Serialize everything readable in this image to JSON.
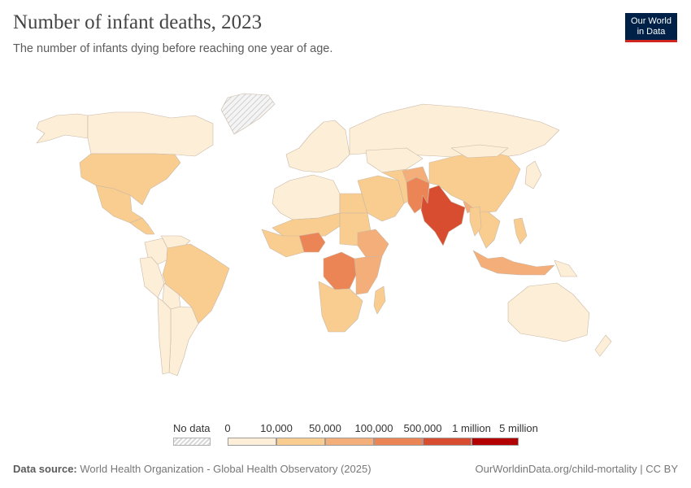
{
  "header": {
    "title": "Number of infant deaths, 2023",
    "subtitle": "The number of infants dying before reaching one year of age.",
    "logo_line1": "Our World",
    "logo_line2": "in Data"
  },
  "map": {
    "scale_colors": [
      "#fdeed8",
      "#f9cd8f",
      "#f3ae79",
      "#ec8555",
      "#d84c30",
      "#b30000"
    ],
    "nodata_color": "#ececec",
    "regions": [
      {
        "name": "Greenland",
        "value": null
      },
      {
        "name": "Alaska",
        "value": 5000
      },
      {
        "name": "Canada",
        "value": 1800
      },
      {
        "name": "United States",
        "value": 20000
      },
      {
        "name": "Mexico",
        "value": 25000
      },
      {
        "name": "Central America",
        "value": 12000
      },
      {
        "name": "Colombia",
        "value": 8000
      },
      {
        "name": "Venezuela",
        "value": 7000
      },
      {
        "name": "Peru",
        "value": 6000
      },
      {
        "name": "Brazil",
        "value": 32000
      },
      {
        "name": "Bolivia",
        "value": 7000
      },
      {
        "name": "Argentina",
        "value": 5000
      },
      {
        "name": "Chile",
        "value": 1500
      },
      {
        "name": "Western Europe",
        "value": 2000
      },
      {
        "name": "Russia",
        "value": 7000
      },
      {
        "name": "North Africa",
        "value": 9000
      },
      {
        "name": "Egypt",
        "value": 30000
      },
      {
        "name": "Sahel",
        "value": 45000
      },
      {
        "name": "Nigeria",
        "value": 250000
      },
      {
        "name": "West Africa",
        "value": 40000
      },
      {
        "name": "Sudan",
        "value": 45000
      },
      {
        "name": "Ethiopia",
        "value": 95000
      },
      {
        "name": "DR Congo",
        "value": 200000
      },
      {
        "name": "East Africa",
        "value": 55000
      },
      {
        "name": "Southern Africa",
        "value": 30000
      },
      {
        "name": "Madagascar",
        "value": 25000
      },
      {
        "name": "Middle East",
        "value": 15000
      },
      {
        "name": "Iran",
        "value": 15000
      },
      {
        "name": "Pakistan",
        "value": 370000
      },
      {
        "name": "Afghanistan",
        "value": 55000
      },
      {
        "name": "India",
        "value": 700000
      },
      {
        "name": "Bangladesh",
        "value": 60000
      },
      {
        "name": "Kazakhstan",
        "value": 5000
      },
      {
        "name": "China",
        "value": 40000
      },
      {
        "name": "Mongolia",
        "value": 1000
      },
      {
        "name": "Japan",
        "value": 1500
      },
      {
        "name": "Southeast Asia",
        "value": 20000
      },
      {
        "name": "Myanmar",
        "value": 25000
      },
      {
        "name": "Philippines",
        "value": 30000
      },
      {
        "name": "Indonesia",
        "value": 80000
      },
      {
        "name": "Papua New Guinea",
        "value": 8000
      },
      {
        "name": "Australia",
        "value": 1000
      },
      {
        "name": "New Zealand",
        "value": 200
      }
    ]
  },
  "legend": {
    "nodata_label": "No data",
    "ticks": [
      "0",
      "10,000",
      "50,000",
      "100,000",
      "500,000",
      "1 million",
      "5 million"
    ],
    "bin_colors": [
      "#fdeed8",
      "#f9cd8f",
      "#f3ae79",
      "#ec8555",
      "#d84c30",
      "#b30000"
    ]
  },
  "footer": {
    "source_label": "Data source:",
    "source_text": "World Health Organization - Global Health Observatory (2025)",
    "url": "OurWorldinData.org/child-mortality | CC BY"
  }
}
